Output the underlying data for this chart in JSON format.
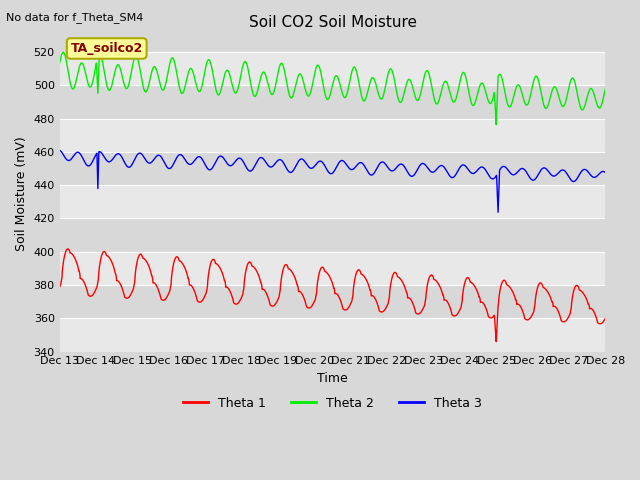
{
  "title": "Soil CO2 Soil Moisture",
  "top_left_text": "No data for f_Theta_SM4",
  "box_label": "TA_soilco2",
  "ylabel": "Soil Moisture (mV)",
  "xlabel": "Time",
  "ylim": [
    340,
    530
  ],
  "yticks": [
    340,
    360,
    380,
    400,
    420,
    440,
    460,
    480,
    500,
    520
  ],
  "xtick_labels": [
    "Dec 13",
    "Dec 14",
    "Dec 15",
    "Dec 16",
    "Dec 17",
    "Dec 18",
    "Dec 19",
    "Dec 20",
    "Dec 21",
    "Dec 22",
    "Dec 23",
    "Dec 24",
    "Dec 25",
    "Dec 26",
    "Dec 27",
    "Dec 28"
  ],
  "plot_bg_color": "#d8d8d8",
  "stripe_color": "#e8e8e8",
  "grid_color": "#ffffff",
  "theta1_color": "#ff0000",
  "theta2_color": "#00ee00",
  "theta3_color": "#0000ff",
  "legend_labels": [
    "Theta 1",
    "Theta 2",
    "Theta 3"
  ],
  "box_facecolor": "#ffff99",
  "box_edgecolor": "#aaaa00",
  "box_textcolor": "#880000",
  "title_fontsize": 11,
  "label_fontsize": 9,
  "tick_fontsize": 8
}
